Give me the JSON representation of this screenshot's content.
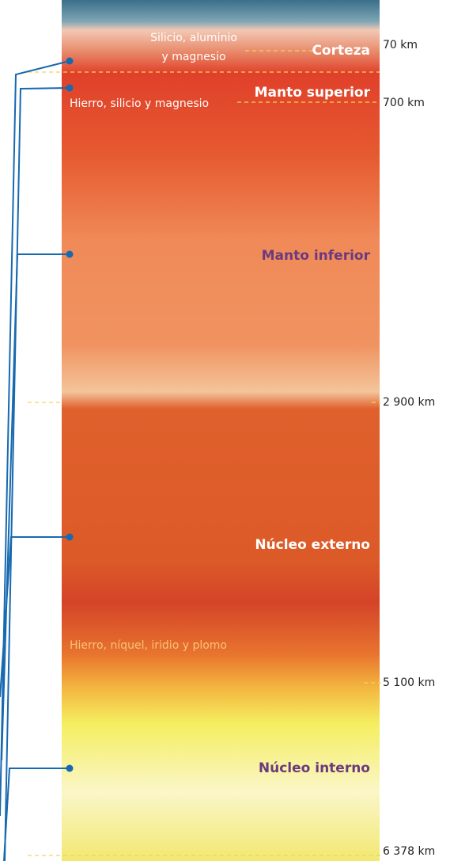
{
  "layers": [
    {
      "name": "Corteza",
      "composition": [
        "Silicio, aluminio",
        "y magnesio"
      ]
    },
    {
      "name": "Manto superior",
      "composition": [
        "Hierro, silicio y magnesio"
      ]
    },
    {
      "name": "Manto inferior"
    },
    {
      "name": "Núcleo externo",
      "composition": [
        "Hierro, níquel, iridio y plomo"
      ]
    },
    {
      "name": "Núcleo interno"
    }
  ],
  "depths": [
    "70 km",
    "700 km",
    "2 900 km",
    "5 100 km",
    "6 378 km"
  ]
}
